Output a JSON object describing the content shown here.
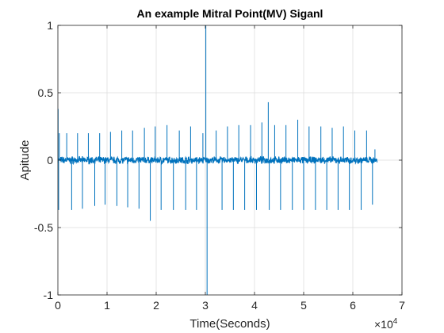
{
  "chart_data": {
    "type": "line",
    "title": "An example Mitral Point(MV) Siganl",
    "xlabel": "Time(Seconds)",
    "ylabel": "Apitude",
    "xlim": [
      0,
      70000
    ],
    "ylim": [
      -1,
      1
    ],
    "x_ticks": [
      0,
      10000,
      20000,
      30000,
      40000,
      50000,
      60000,
      70000
    ],
    "x_tick_labels": [
      "0",
      "1",
      "2",
      "3",
      "4",
      "5",
      "6",
      "7"
    ],
    "x_exponent_label": {
      "base": "×10",
      "power": "4"
    },
    "y_ticks": [
      -1,
      -0.5,
      0,
      0.5,
      1
    ],
    "y_tick_labels": [
      "-1",
      "-0.5",
      "0",
      "0.5",
      "1"
    ],
    "grid": true,
    "series": [
      {
        "color": "#0072BD",
        "x_end": 65000,
        "baseline_noise": 0.02,
        "spikes": [
          {
            "x": 50,
            "y": 0.38
          },
          {
            "x": 150,
            "y": -0.37
          },
          {
            "x": 300,
            "y": 0.2
          },
          {
            "x": 1800,
            "y": 0.2
          },
          {
            "x": 2800,
            "y": -0.37
          },
          {
            "x": 4000,
            "y": 0.2
          },
          {
            "x": 5000,
            "y": -0.36
          },
          {
            "x": 6200,
            "y": 0.2
          },
          {
            "x": 7500,
            "y": -0.34
          },
          {
            "x": 8500,
            "y": 0.2
          },
          {
            "x": 9600,
            "y": -0.33
          },
          {
            "x": 10700,
            "y": 0.21
          },
          {
            "x": 12000,
            "y": -0.34
          },
          {
            "x": 13000,
            "y": 0.22
          },
          {
            "x": 14200,
            "y": -0.35
          },
          {
            "x": 15200,
            "y": 0.22
          },
          {
            "x": 16500,
            "y": -0.36
          },
          {
            "x": 17600,
            "y": 0.24
          },
          {
            "x": 18800,
            "y": -0.45
          },
          {
            "x": 19800,
            "y": 0.25
          },
          {
            "x": 21000,
            "y": -0.37
          },
          {
            "x": 22200,
            "y": 0.26
          },
          {
            "x": 23500,
            "y": -0.37
          },
          {
            "x": 24700,
            "y": 0.22
          },
          {
            "x": 26000,
            "y": -0.37
          },
          {
            "x": 27000,
            "y": 0.25
          },
          {
            "x": 28200,
            "y": -0.37
          },
          {
            "x": 29500,
            "y": 0.2
          },
          {
            "x": 30100,
            "y": 1.0
          },
          {
            "x": 30350,
            "y": -1.0
          },
          {
            "x": 32200,
            "y": 0.22
          },
          {
            "x": 33400,
            "y": -0.37
          },
          {
            "x": 34500,
            "y": 0.25
          },
          {
            "x": 35700,
            "y": -0.37
          },
          {
            "x": 36800,
            "y": 0.26
          },
          {
            "x": 38000,
            "y": -0.37
          },
          {
            "x": 39200,
            "y": 0.26
          },
          {
            "x": 40400,
            "y": -0.37
          },
          {
            "x": 41500,
            "y": 0.28
          },
          {
            "x": 42800,
            "y": 0.43
          },
          {
            "x": 43000,
            "y": -0.37
          },
          {
            "x": 44100,
            "y": 0.26
          },
          {
            "x": 45300,
            "y": -0.37
          },
          {
            "x": 46400,
            "y": 0.26
          },
          {
            "x": 47700,
            "y": -0.37
          },
          {
            "x": 48800,
            "y": 0.3
          },
          {
            "x": 50000,
            "y": -0.37
          },
          {
            "x": 51100,
            "y": 0.25
          },
          {
            "x": 52400,
            "y": -0.37
          },
          {
            "x": 53500,
            "y": 0.25
          },
          {
            "x": 54700,
            "y": -0.37
          },
          {
            "x": 55800,
            "y": 0.24
          },
          {
            "x": 57000,
            "y": -0.37
          },
          {
            "x": 58100,
            "y": 0.25
          },
          {
            "x": 59300,
            "y": -0.37
          },
          {
            "x": 60400,
            "y": 0.22
          },
          {
            "x": 61700,
            "y": -0.37
          },
          {
            "x": 62800,
            "y": 0.22
          },
          {
            "x": 64000,
            "y": -0.33
          },
          {
            "x": 64500,
            "y": 0.08
          }
        ]
      }
    ]
  }
}
